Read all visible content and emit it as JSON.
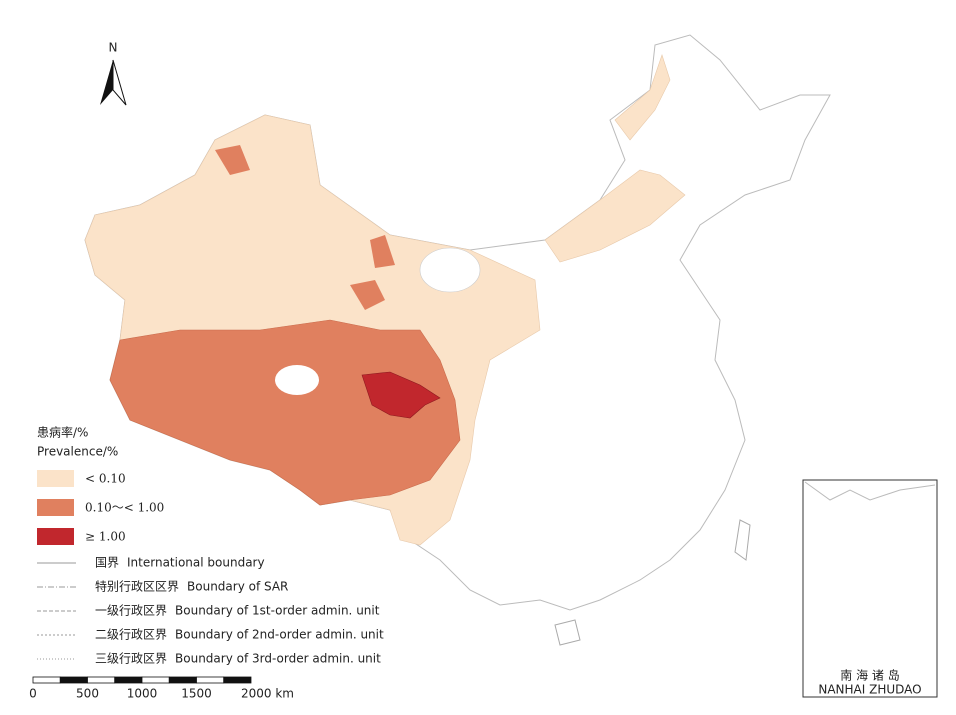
{
  "north_label": "N",
  "legend": {
    "title_cn": "患病率/%",
    "title_en": "Prevalence/%",
    "classes": [
      {
        "label": "< 0.10",
        "color": "#fbe3c9"
      },
      {
        "label": "0.10～< 1.00",
        "color": "#e0805f"
      },
      {
        "label": "≥ 1.00",
        "color": "#c1272d"
      }
    ],
    "boundaries": [
      {
        "cn": "国界",
        "en": "International boundary"
      },
      {
        "cn": "特别行政区区界",
        "en": "Boundary of SAR"
      },
      {
        "cn": "一级行政区界",
        "en": "Boundary of 1st-order admin. unit"
      },
      {
        "cn": "二级行政区界",
        "en": "Boundary of 2nd-order admin. unit"
      },
      {
        "cn": "三级行政区界",
        "en": "Boundary of 3rd-order admin. unit"
      }
    ]
  },
  "scale_bar": {
    "labels": [
      "0",
      "500",
      "1000",
      "1500",
      "2000 km"
    ]
  },
  "inset": {
    "title_cn": "南 海 诸 岛",
    "title_en": "NANHAI ZHUDAO"
  }
}
